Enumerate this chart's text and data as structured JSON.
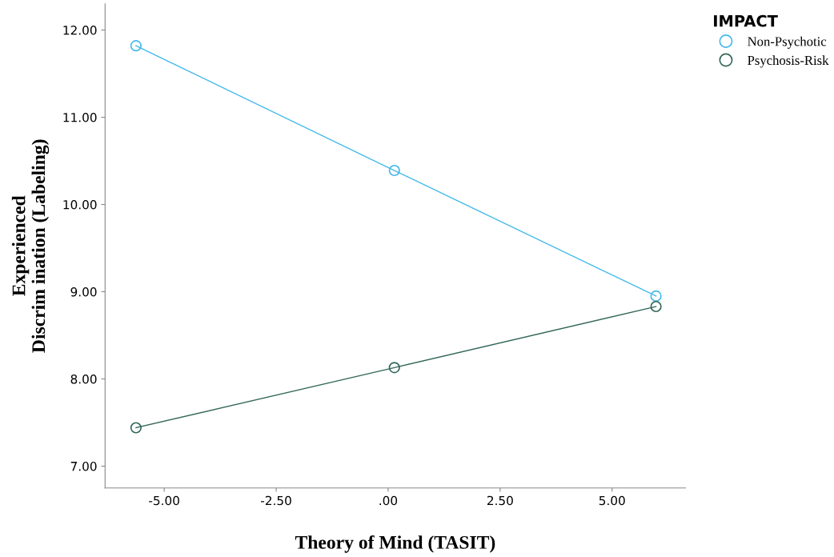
{
  "chart_data": {
    "type": "line",
    "xlabel": "Theory of Mind (TASIT)",
    "ylabel": "Experienced\nDiscrim ination (Labeling)",
    "legend_title": "IMPACT",
    "legend": "top right",
    "marker": "circle",
    "line_style": "solid",
    "grid": false,
    "x": [
      -5.63,
      0.14,
      5.98
    ],
    "series": [
      {
        "name": "Non-Psychotic",
        "color": "#45b9ea",
        "values": [
          11.82,
          10.39,
          8.95
        ]
      },
      {
        "name": "Psychosis-Risk",
        "color": "#33675a",
        "values": [
          7.44,
          8.13,
          8.83
        ]
      }
    ],
    "xlim": [
      -6.32,
      6.64
    ],
    "xticks": [
      {
        "value": -5,
        "label": "-5.00"
      },
      {
        "value": -2.5,
        "label": "-2.50"
      },
      {
        "value": 0,
        "label": ".00"
      },
      {
        "value": 2.5,
        "label": "2.50"
      },
      {
        "value": 5,
        "label": "5.00"
      }
    ],
    "ylim": [
      6.75,
      12.3
    ],
    "yticks": [
      {
        "value": 7,
        "label": "7.00"
      },
      {
        "value": 8,
        "label": "8.00"
      },
      {
        "value": 9,
        "label": "9.00"
      },
      {
        "value": 10,
        "label": "10.00"
      },
      {
        "value": 11,
        "label": "11.00"
      },
      {
        "value": 12,
        "label": "12.00"
      }
    ]
  }
}
